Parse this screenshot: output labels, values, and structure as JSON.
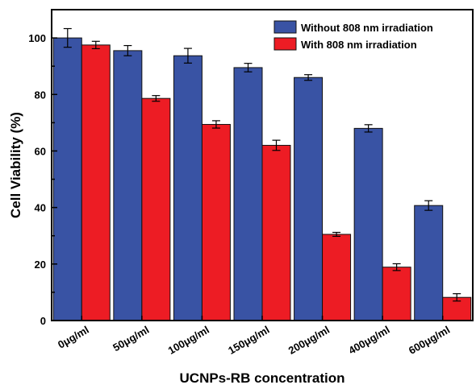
{
  "chart_data": {
    "type": "bar",
    "xlabel": "UCNPs-RB concentration",
    "ylabel": "Cell Viability (%)",
    "ylim": [
      0,
      110
    ],
    "yticks": [
      0,
      20,
      40,
      60,
      80,
      100
    ],
    "categories": [
      "0μg/ml",
      "50μg/ml",
      "100μg/ml",
      "150μg/ml",
      "200μg/ml",
      "400μg/ml",
      "600μg/ml"
    ],
    "series": [
      {
        "name": "Without 808 nm irradiation",
        "color": "#3953a4",
        "values": [
          100.0,
          95.5,
          93.7,
          89.5,
          86.0,
          68.0,
          40.7
        ],
        "errors": [
          3.3,
          1.8,
          2.6,
          1.5,
          1.0,
          1.3,
          1.7
        ]
      },
      {
        "name": "With 808 nm irradiation",
        "color": "#ed1c24",
        "values": [
          97.5,
          78.6,
          69.4,
          62.0,
          30.5,
          18.9,
          8.2
        ],
        "errors": [
          1.3,
          1.0,
          1.3,
          1.8,
          0.7,
          1.2,
          1.3
        ]
      }
    ],
    "grid": false,
    "legend_position": "top-right"
  }
}
